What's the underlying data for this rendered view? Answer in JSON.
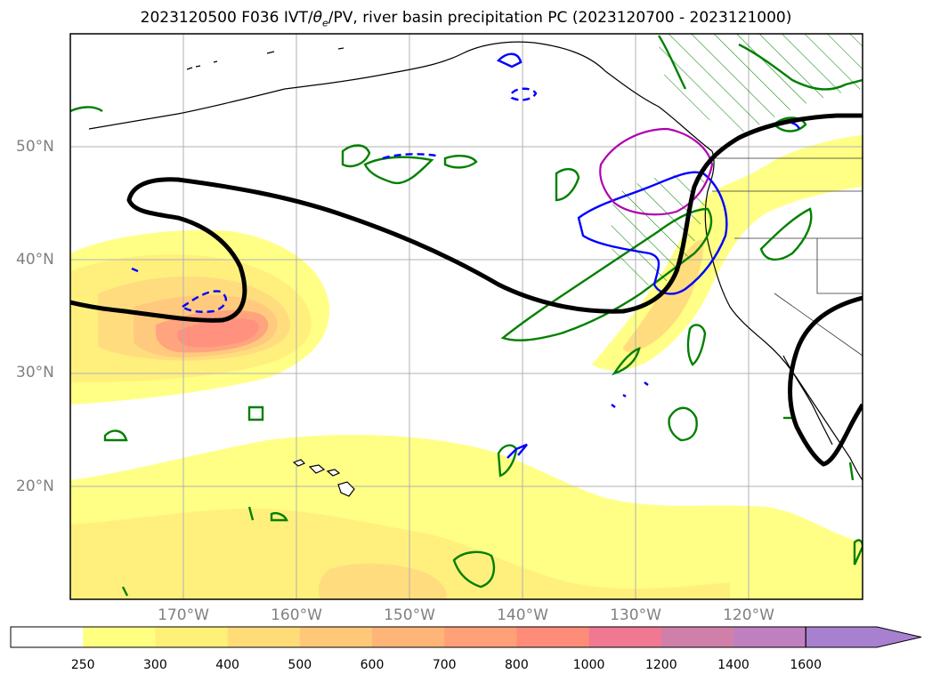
{
  "title": {
    "prefix": "2023120500 F036 IVT/",
    "theta_symbol": "θ",
    "theta_sub": "e",
    "suffix": "/PV, river basin precipitation PC (2023120700 - 2023121000)"
  },
  "map": {
    "projection": "Mercator",
    "lon_range": [
      -180,
      -110
    ],
    "lat_range": [
      10,
      60
    ],
    "grid": true,
    "lat_ticks": [
      {
        "value": 20,
        "label": "20°N"
      },
      {
        "value": 30,
        "label": "30°N"
      },
      {
        "value": 40,
        "label": "40°N"
      },
      {
        "value": 50,
        "label": "50°N"
      }
    ],
    "lon_ticks": [
      {
        "value": -170,
        "label": "170°W"
      },
      {
        "value": -160,
        "label": "160°W"
      },
      {
        "value": -150,
        "label": "150°W"
      },
      {
        "value": -140,
        "label": "140°W"
      },
      {
        "value": -130,
        "label": "130°W"
      },
      {
        "value": -120,
        "label": "120°W"
      }
    ],
    "colors": {
      "theta_e_contour": "#000000",
      "pv_contour": "#008000",
      "precip_pc_contour": "#0000ff",
      "magenta_contour": "#b000b0",
      "coastline": "#000000"
    }
  },
  "colorbar": {
    "ticks": [
      "250",
      "300",
      "400",
      "500",
      "600",
      "700",
      "800",
      "1000",
      "1200",
      "1400",
      "1600"
    ],
    "colors": [
      "#ffffff",
      "#ffff80",
      "#fff078",
      "#ffdc78",
      "#ffc878",
      "#ffb478",
      "#ffa078",
      "#ff8c78",
      "#f07890",
      "#d080a8",
      "#c080c0",
      "#a880d0"
    ],
    "extend": "max"
  }
}
